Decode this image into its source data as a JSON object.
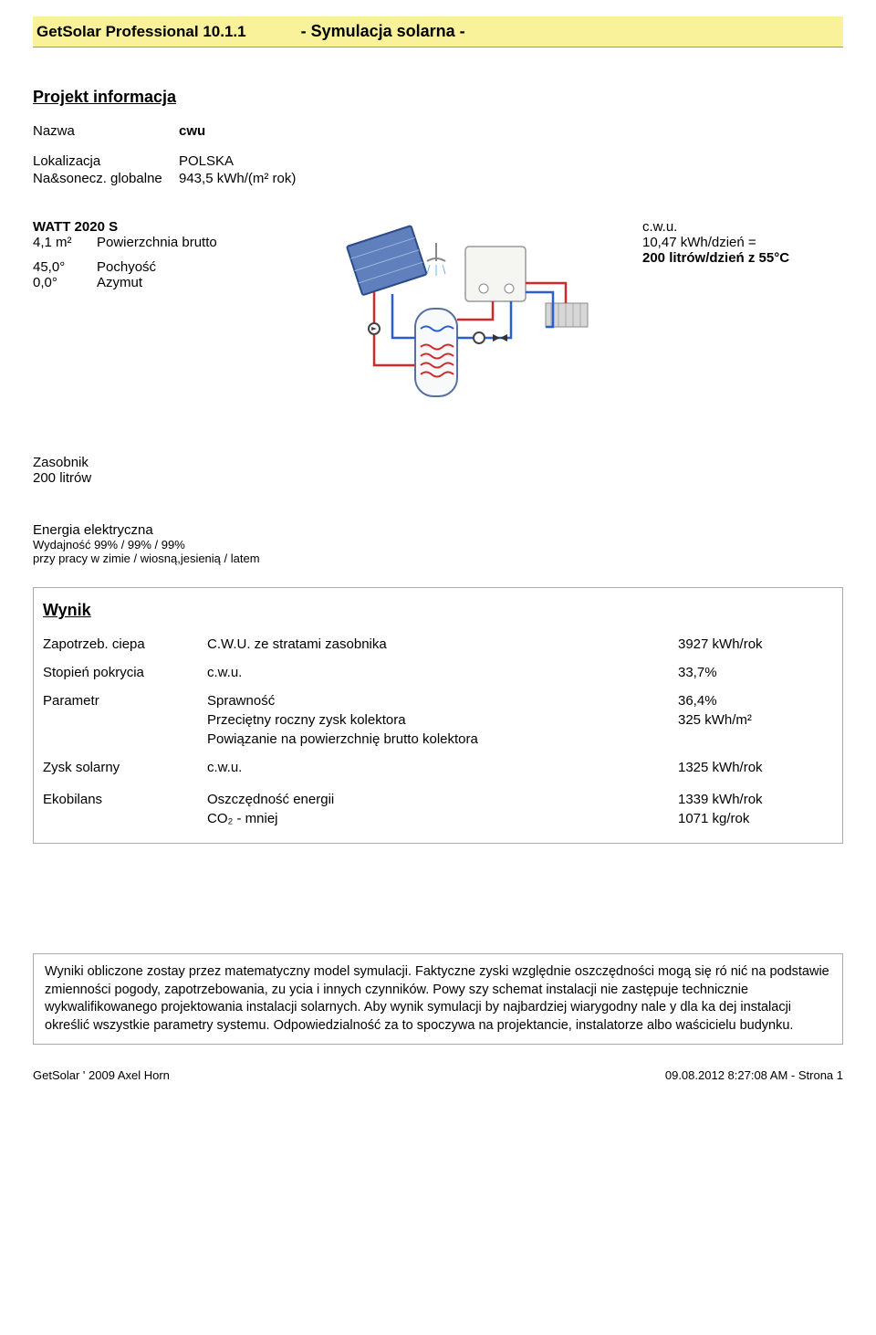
{
  "banner": {
    "product": "GetSolar Professional 10.1.1",
    "title": "- Symulacja solarna -"
  },
  "project": {
    "section": "Projekt informacja",
    "name_label": "Nazwa",
    "name_value": "cwu",
    "loc_label": "Lokalizacja",
    "loc_value": "POLSKA",
    "sun_label": "Na&sonecz. globalne",
    "sun_value": "943,5 kWh/(m² rok)"
  },
  "panel": {
    "title": "WATT  2020 S",
    "area_l": "4,1 m²",
    "area_r": "Powierzchnia brutto",
    "tilt_l": "45,0°",
    "tilt_r": "Pochyość",
    "azimuth_l": "0,0°",
    "azimuth_r": "Azymut"
  },
  "cwu": {
    "l1": "c.w.u.",
    "l2": "10,47 kWh/dzień =",
    "l3": "200 litrów/dzień z 55°C"
  },
  "tank": {
    "l1": "Zasobnik",
    "l2": "200 litrów"
  },
  "electric": {
    "l1": "Energia elektryczna",
    "l2": "Wydajność  99% / 99% / 99%",
    "l3": "przy pracy w zimie / wiosną,jesienią / latem"
  },
  "result": {
    "section": "Wynik",
    "rows": [
      {
        "c1": "Zapotrzeb. ciepa",
        "c2": "C.W.U. ze stratami zasobnika",
        "c3": "3927 kWh/rok"
      },
      {
        "c1": "Stopień pokrycia",
        "c2": "c.w.u.",
        "c3": "33,7%"
      },
      {
        "c1": "Parametr",
        "c2": "Sprawność",
        "c3": "36,4%"
      },
      {
        "c1": "",
        "c2": "Przeciętny roczny zysk kolektora",
        "c3": "325 kWh/m²"
      },
      {
        "c1": "",
        "c2": "Powiązanie na powierzchnię brutto kolektora",
        "c3": ""
      },
      {
        "c1": "Zysk solarny",
        "c2": "c.w.u.",
        "c3": "1325 kWh/rok"
      },
      {
        "c1": "Ekobilans",
        "c2": "Oszczędność energii",
        "c3": "1339 kWh/rok"
      },
      {
        "c1": "",
        "c2": "CO₂ - mniej",
        "c3": "1071 kg/rok"
      }
    ]
  },
  "summary": "Wyniki obliczone zostay przez matematyczny model symulacji. Faktyczne zyski względnie oszczędności mogą się ró nić na podstawie zmienności pogody, zapotrzebowania, zu ycia i innych czynników. Powy szy schemat instalacji nie zastępuje technicznie wykwalifikowanego projektowania instalacji solarnych. Aby wynik symulacji by najbardziej wiarygodny nale y dla ka dej instalacji określić wszystkie parametry systemu. Odpowiedzialność za to spoczywa na projektancie, instalatorze albo waścicielu budynku.",
  "footer": {
    "left": "GetSolar ' 2009 Axel Horn",
    "right": "09.08.2012 8:27:08 AM - Strona 1"
  },
  "diagram": {
    "colors": {
      "panel_fill": "#5f7fbd",
      "panel_border": "#2b4a8b",
      "tank_fill": "#f7f9fb",
      "tank_border": "#5770a0",
      "tank_coil": "#d02a2a",
      "box_fill": "#f5f5f2",
      "box_border": "#999",
      "pipe_hot": "#d02a2a",
      "pipe_cold": "#2a5fd0",
      "radiator": "#d7d7d7",
      "pump": "#444"
    }
  }
}
